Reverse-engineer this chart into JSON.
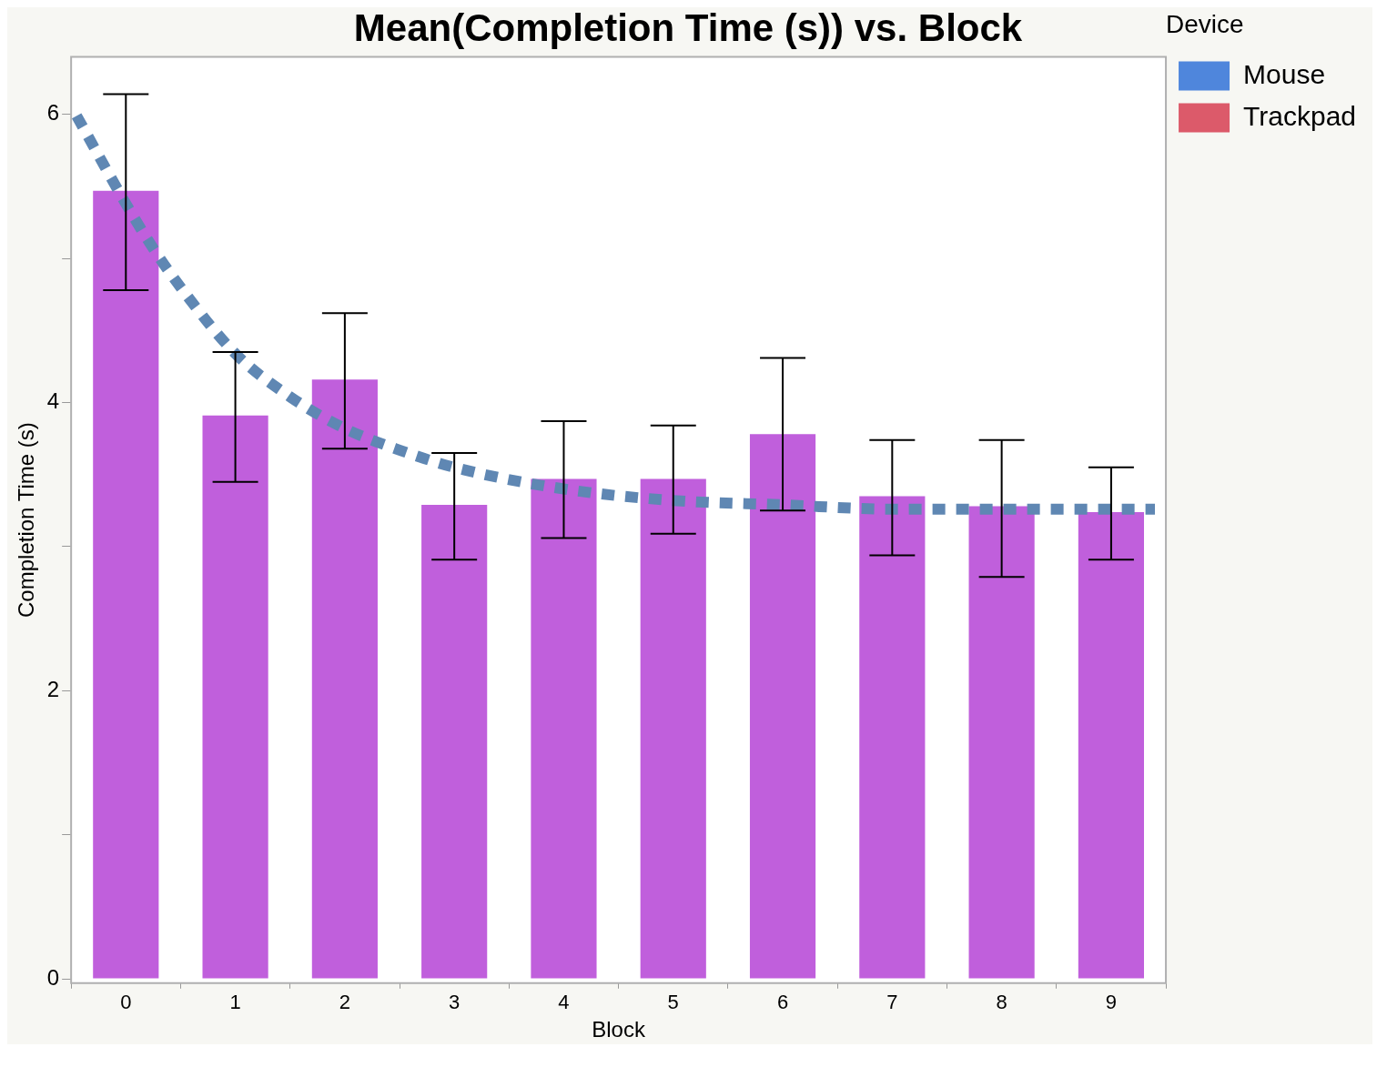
{
  "chart_data": {
    "type": "bar",
    "title": "Mean(Completion Time (s)) vs. Block",
    "xlabel": "Block",
    "ylabel": "Completion Time (s)",
    "legend_title": "Device",
    "legend": "top right",
    "grid": false,
    "x": [
      0,
      1,
      2,
      3,
      4,
      5,
      6,
      7,
      8,
      9
    ],
    "xlim": [
      -0.5,
      9.5
    ],
    "xticks": [
      0,
      1,
      2,
      3,
      4,
      5,
      6,
      7,
      8,
      9
    ],
    "ylim": [
      -0.03,
      6.4
    ],
    "yticks": [
      0,
      {
        "value": 1,
        "label": null
      },
      2,
      {
        "value": 3,
        "label": null
      },
      4,
      {
        "value": 5,
        "label": null
      },
      6
    ],
    "series": [
      {
        "color": "#c05fdc",
        "values": [
          5.47,
          3.91,
          4.16,
          3.29,
          3.47,
          3.47,
          3.78,
          3.35,
          3.28,
          3.24
        ],
        "errors": [
          [
            4.78,
            6.14
          ],
          [
            3.45,
            4.35
          ],
          [
            3.68,
            4.62
          ],
          [
            2.91,
            3.65
          ],
          [
            3.06,
            3.87
          ],
          [
            3.09,
            3.84
          ],
          [
            3.25,
            4.31
          ],
          [
            2.94,
            3.74
          ],
          [
            2.79,
            3.74
          ],
          [
            2.91,
            3.55
          ]
        ]
      },
      {
        "type": "line",
        "color": "#5f87b3",
        "line_style": "dashed",
        "marker": "none",
        "x": [
          -0.45,
          0,
          0.25,
          0.5,
          1,
          1.5,
          2,
          2.5,
          3,
          4,
          5,
          6,
          7,
          8,
          9.4
        ],
        "values": [
          5.99,
          5.38,
          5.07,
          4.8,
          4.34,
          4.04,
          3.82,
          3.67,
          3.55,
          3.4,
          3.32,
          3.29,
          3.26,
          3.26,
          3.26
        ]
      },
      {
        "name": "Mouse",
        "color": "#4f86dc",
        "values": [
          null,
          null,
          null,
          null,
          null,
          null,
          null,
          null,
          null,
          null
        ]
      },
      {
        "name": "Trackpad",
        "color": "#dc5a6a",
        "values": [
          null,
          null,
          null,
          null,
          null,
          null,
          null,
          null,
          null,
          null
        ]
      }
    ]
  }
}
